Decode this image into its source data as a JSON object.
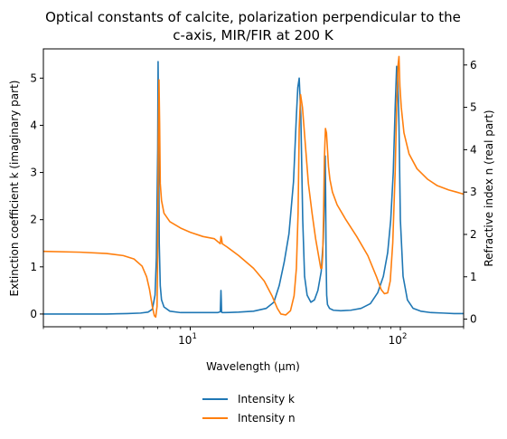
{
  "chart_data": {
    "type": "line",
    "title_lines": [
      "Optical constants of calcite, polarization perpendicular to the",
      "c-axis, MIR/FIR at 200 K"
    ],
    "xlabel": "Wavelength (μm)",
    "ylabel_left": "Extinction coefficient k (imaginary part)",
    "ylabel_right": "Refractive index n (real part)",
    "x_scale": "log",
    "xlim": [
      2,
      200
    ],
    "ylim_left": [
      -0.27,
      5.62
    ],
    "ylim_right": [
      -0.18,
      6.38
    ],
    "x_ticks": [
      {
        "value": 10,
        "base": "10",
        "exp": "1"
      },
      {
        "value": 100,
        "base": "10",
        "exp": "2"
      }
    ],
    "y_ticks_left": [
      "0",
      "1",
      "2",
      "3",
      "4",
      "5"
    ],
    "y_ticks_right": [
      "0",
      "1",
      "2",
      "3",
      "4",
      "5",
      "6"
    ],
    "grid": false,
    "legend_position": "bottom-center, below plot",
    "series": [
      {
        "name": "Intensity k",
        "axis": "left",
        "color": "#1f77b4",
        "x": [
          2.0,
          3.0,
          4.0,
          5.0,
          5.8,
          6.3,
          6.6,
          6.8,
          6.9,
          7.0,
          7.03,
          7.07,
          7.12,
          7.2,
          7.3,
          7.5,
          8.0,
          9.0,
          11.0,
          13.5,
          13.9,
          14.0,
          14.05,
          14.1,
          14.2,
          14.6,
          17.0,
          20.0,
          23.0,
          25.0,
          26.5,
          28.0,
          29.5,
          31.0,
          32.0,
          32.5,
          33.0,
          33.6,
          34.3,
          35.0,
          36.0,
          37.5,
          39.0,
          40.5,
          42.0,
          43.0,
          43.5,
          43.9,
          44.1,
          44.3,
          44.6,
          45.0,
          46.0,
          48.0,
          52.0,
          58.0,
          65.0,
          72.0,
          78.0,
          83.0,
          87.0,
          90.0,
          92.5,
          94.5,
          96.0,
          97.0,
          98.5,
          100.0,
          103.0,
          108.0,
          115.0,
          125.0,
          140.0,
          160.0,
          180.0,
          200.0
        ],
        "y": [
          0.0,
          0.0,
          0.0,
          0.01,
          0.02,
          0.04,
          0.1,
          0.4,
          1.2,
          3.5,
          5.35,
          4.0,
          1.5,
          0.6,
          0.3,
          0.15,
          0.06,
          0.03,
          0.03,
          0.03,
          0.05,
          0.5,
          0.3,
          0.04,
          0.03,
          0.03,
          0.04,
          0.06,
          0.12,
          0.25,
          0.6,
          1.1,
          1.7,
          2.8,
          4.2,
          4.8,
          5.0,
          4.2,
          2.0,
          0.8,
          0.4,
          0.25,
          0.3,
          0.5,
          0.9,
          1.6,
          2.4,
          3.35,
          2.5,
          1.2,
          0.4,
          0.2,
          0.12,
          0.08,
          0.07,
          0.08,
          0.12,
          0.22,
          0.45,
          0.8,
          1.3,
          2.0,
          3.0,
          4.4,
          5.25,
          5.2,
          4.0,
          2.0,
          0.8,
          0.3,
          0.12,
          0.06,
          0.03,
          0.02,
          0.01,
          0.01
        ]
      },
      {
        "name": "Intensity n",
        "axis": "right",
        "color": "#ff7f0e",
        "x": [
          2.0,
          3.0,
          4.0,
          4.8,
          5.4,
          5.9,
          6.2,
          6.4,
          6.6,
          6.75,
          6.85,
          6.95,
          7.0,
          7.05,
          7.1,
          7.15,
          7.2,
          7.3,
          7.5,
          8.0,
          9.0,
          10.0,
          11.5,
          13.0,
          13.9,
          14.0,
          14.1,
          14.2,
          15.0,
          17.0,
          20.0,
          22.5,
          24.5,
          26.0,
          27.0,
          28.5,
          30.0,
          31.2,
          32.0,
          32.6,
          33.0,
          33.5,
          34.2,
          35.2,
          36.5,
          38.0,
          39.5,
          40.8,
          41.8,
          42.3,
          42.7,
          43.1,
          43.5,
          44.0,
          44.5,
          45.0,
          45.5,
          46.2,
          47.5,
          50.0,
          55.0,
          62.0,
          70.0,
          77.0,
          81.0,
          84.0,
          87.0,
          89.5,
          92.0,
          94.5,
          96.0,
          97.5,
          98.5,
          99.5,
          101.0,
          104.0,
          110.0,
          120.0,
          135.0,
          150.0,
          170.0,
          185.0,
          200.0
        ],
        "y": [
          1.6,
          1.58,
          1.55,
          1.5,
          1.42,
          1.25,
          1.0,
          0.7,
          0.3,
          0.08,
          0.05,
          0.3,
          1.5,
          4.2,
          5.65,
          4.6,
          3.2,
          2.8,
          2.5,
          2.3,
          2.15,
          2.05,
          1.95,
          1.9,
          1.78,
          1.95,
          1.9,
          1.78,
          1.7,
          1.5,
          1.2,
          0.9,
          0.55,
          0.25,
          0.12,
          0.1,
          0.2,
          0.55,
          1.2,
          2.5,
          4.5,
          5.3,
          5.0,
          4.2,
          3.2,
          2.5,
          1.9,
          1.5,
          1.2,
          1.2,
          1.5,
          2.5,
          3.8,
          4.5,
          4.4,
          4.0,
          3.6,
          3.3,
          3.0,
          2.7,
          2.35,
          1.95,
          1.5,
          1.0,
          0.7,
          0.6,
          0.62,
          0.9,
          1.8,
          3.5,
          5.0,
          6.0,
          6.2,
          5.5,
          5.0,
          4.4,
          3.9,
          3.55,
          3.3,
          3.15,
          3.05,
          3.0,
          2.95
        ]
      }
    ]
  }
}
